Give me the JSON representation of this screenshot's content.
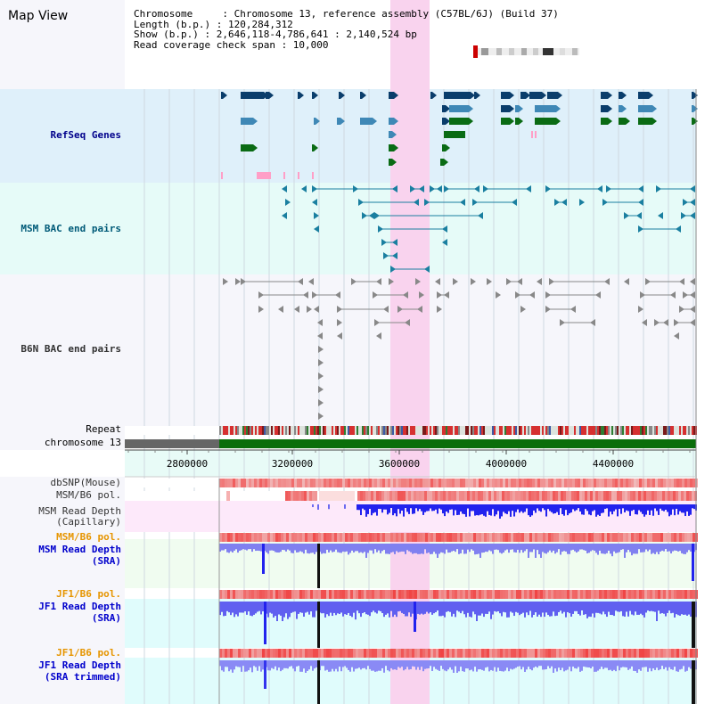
{
  "title": "Map View",
  "info": {
    "chromosome": "Chromosome     : Chromosome 13, reference assembly (C57BL/6J) (Build 37)",
    "length": "Length (b.p.) : 120,284,312",
    "show": "Show (b.p.) : 2,646,118-4,786,641 : 2,140,524 bp",
    "coverage": "Read coverage check span : 10,000"
  },
  "tracks": {
    "refseq": "RefSeq Genes",
    "msm_bac": "MSM BAC end pairs",
    "b6n_bac": "B6N BAC end pairs",
    "repeat": "Repeat",
    "chromosome": "chromosome 13",
    "dbsnp": "dbSNP(Mouse)",
    "msm_b6_pol_1": "MSM/B6 pol.",
    "msm_depth_cap_1": "MSM Read Depth",
    "msm_depth_cap_2": "(Capillary)",
    "msm_b6_pol_2": "MSM/B6 pol.",
    "msm_depth_sra_1": "MSM Read Depth",
    "msm_depth_sra_2": "(SRA)",
    "jf1_b6_pol_1": "JF1/B6 pol.",
    "jf1_depth_sra_1": "JF1 Read Depth",
    "jf1_depth_sra_2": "(SRA)",
    "jf1_b6_pol_2": "JF1/B6 pol.",
    "jf1_depth_trim_1": "JF1 Read Depth",
    "jf1_depth_trim_2": "(SRA trimmed)"
  },
  "axis": {
    "ticks": [
      "2800000",
      "3200000",
      "3600000",
      "4000000",
      "4400000"
    ]
  },
  "colors": {
    "refseq_bg": "#dff0fa",
    "bac_bg": "#e6fbf8",
    "highlight": "#f9d3ee",
    "gene_navy": "#0a3d6b",
    "gene_steel": "#3f88b6",
    "gene_green": "#0a6b14",
    "gene_pink": "#ff9fc7",
    "msm_bac": "#1a7fa0",
    "b6n_bac": "#888888",
    "depth_blue": "#3333ee",
    "depth_light": "#8a8af5",
    "pol_red": "#f06060",
    "chrom_green": "#0a6e0a",
    "chrom_gray": "#666666"
  }
}
